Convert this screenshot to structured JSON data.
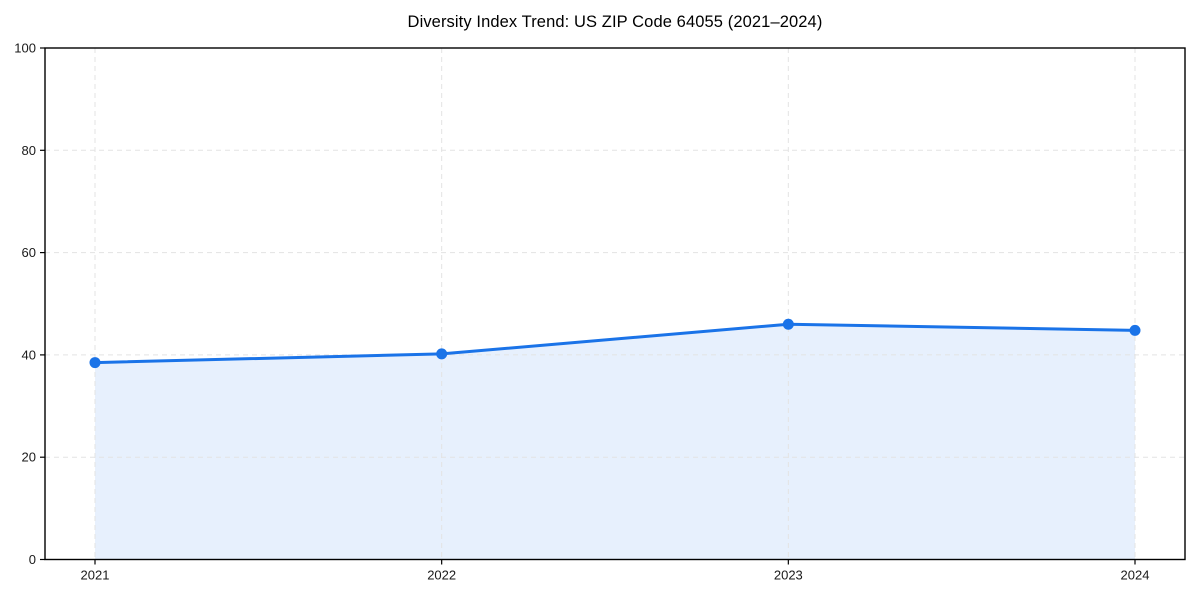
{
  "page": {
    "background_color": "#ffffff"
  },
  "chart_data": {
    "type": "line",
    "title": "Diversity Index Trend: US ZIP Code 64055 (2021–2024)",
    "categories": [
      "2021",
      "2022",
      "2023",
      "2024"
    ],
    "series": [
      {
        "name": "Diversity Index",
        "values": [
          38.5,
          40.2,
          46.0,
          44.8
        ]
      }
    ],
    "xlabel": "",
    "ylabel": "",
    "ylim": [
      0,
      100
    ],
    "yticks": [
      0,
      20,
      40,
      60,
      80,
      100
    ],
    "grid": true,
    "grid_style": "dashed",
    "grid_axes": "both",
    "legend_position": "none",
    "area_fill": true,
    "marker_shape": "circle",
    "colors": {
      "line": "#1a73e8",
      "marker": "#1a73e8",
      "fill": "#e7f0fd",
      "grid": "#e3e3e3",
      "spine": "#000000",
      "tick_label": "#1a1a1a",
      "title": "#000000",
      "background": "#ffffff"
    }
  }
}
